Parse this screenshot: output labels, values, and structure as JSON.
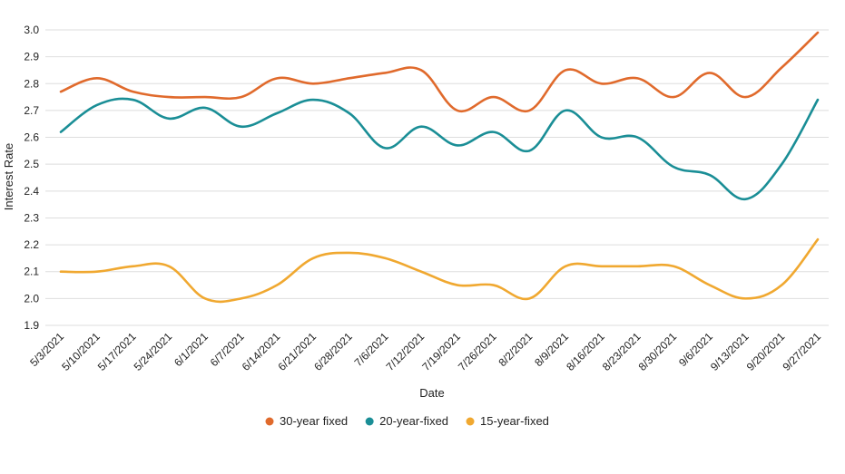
{
  "chart_data": {
    "type": "line",
    "title": "",
    "xlabel": "Date",
    "ylabel": "Interest Rate",
    "ylim": [
      1.9,
      3.0
    ],
    "yticks": [
      "1.9",
      "2.0",
      "2.1",
      "2.2",
      "2.3",
      "2.4",
      "2.5",
      "2.6",
      "2.7",
      "2.8",
      "2.9",
      "3.0"
    ],
    "grid": true,
    "legend_position": "bottom",
    "categories": [
      "5/3/2021",
      "5/10/2021",
      "5/17/2021",
      "5/24/2021",
      "6/1/2021",
      "6/7/2021",
      "6/14/2021",
      "6/21/2021",
      "6/28/2021",
      "7/6/2021",
      "7/12/2021",
      "7/19/2021",
      "7/26/2021",
      "8/2/2021",
      "8/9/2021",
      "8/16/2021",
      "8/23/2021",
      "8/30/2021",
      "9/6/2021",
      "9/13/2021",
      "9/20/2021",
      "9/27/2021"
    ],
    "series": [
      {
        "name": "30-year fixed",
        "color": "#e06a2c",
        "values": [
          2.77,
          2.82,
          2.77,
          2.75,
          2.75,
          2.75,
          2.82,
          2.8,
          2.82,
          2.84,
          2.85,
          2.7,
          2.75,
          2.7,
          2.85,
          2.8,
          2.82,
          2.75,
          2.84,
          2.75,
          2.86,
          2.99
        ]
      },
      {
        "name": "20-year-fixed",
        "color": "#1a8e96",
        "values": [
          2.62,
          2.72,
          2.74,
          2.67,
          2.71,
          2.64,
          2.69,
          2.74,
          2.69,
          2.56,
          2.64,
          2.57,
          2.62,
          2.55,
          2.7,
          2.6,
          2.6,
          2.49,
          2.46,
          2.37,
          2.5,
          2.74
        ]
      },
      {
        "name": "15-year-fixed",
        "color": "#f0a830",
        "values": [
          2.1,
          2.1,
          2.12,
          2.12,
          2.0,
          2.0,
          2.05,
          2.15,
          2.17,
          2.15,
          2.1,
          2.05,
          2.05,
          2.0,
          2.12,
          2.12,
          2.12,
          2.12,
          2.05,
          2.0,
          2.05,
          2.22
        ]
      }
    ]
  },
  "legend": {
    "items": [
      "30-year fixed",
      "20-year-fixed",
      "15-year-fixed"
    ]
  },
  "colors": {
    "grid": "#dedede",
    "text": "#222222"
  }
}
